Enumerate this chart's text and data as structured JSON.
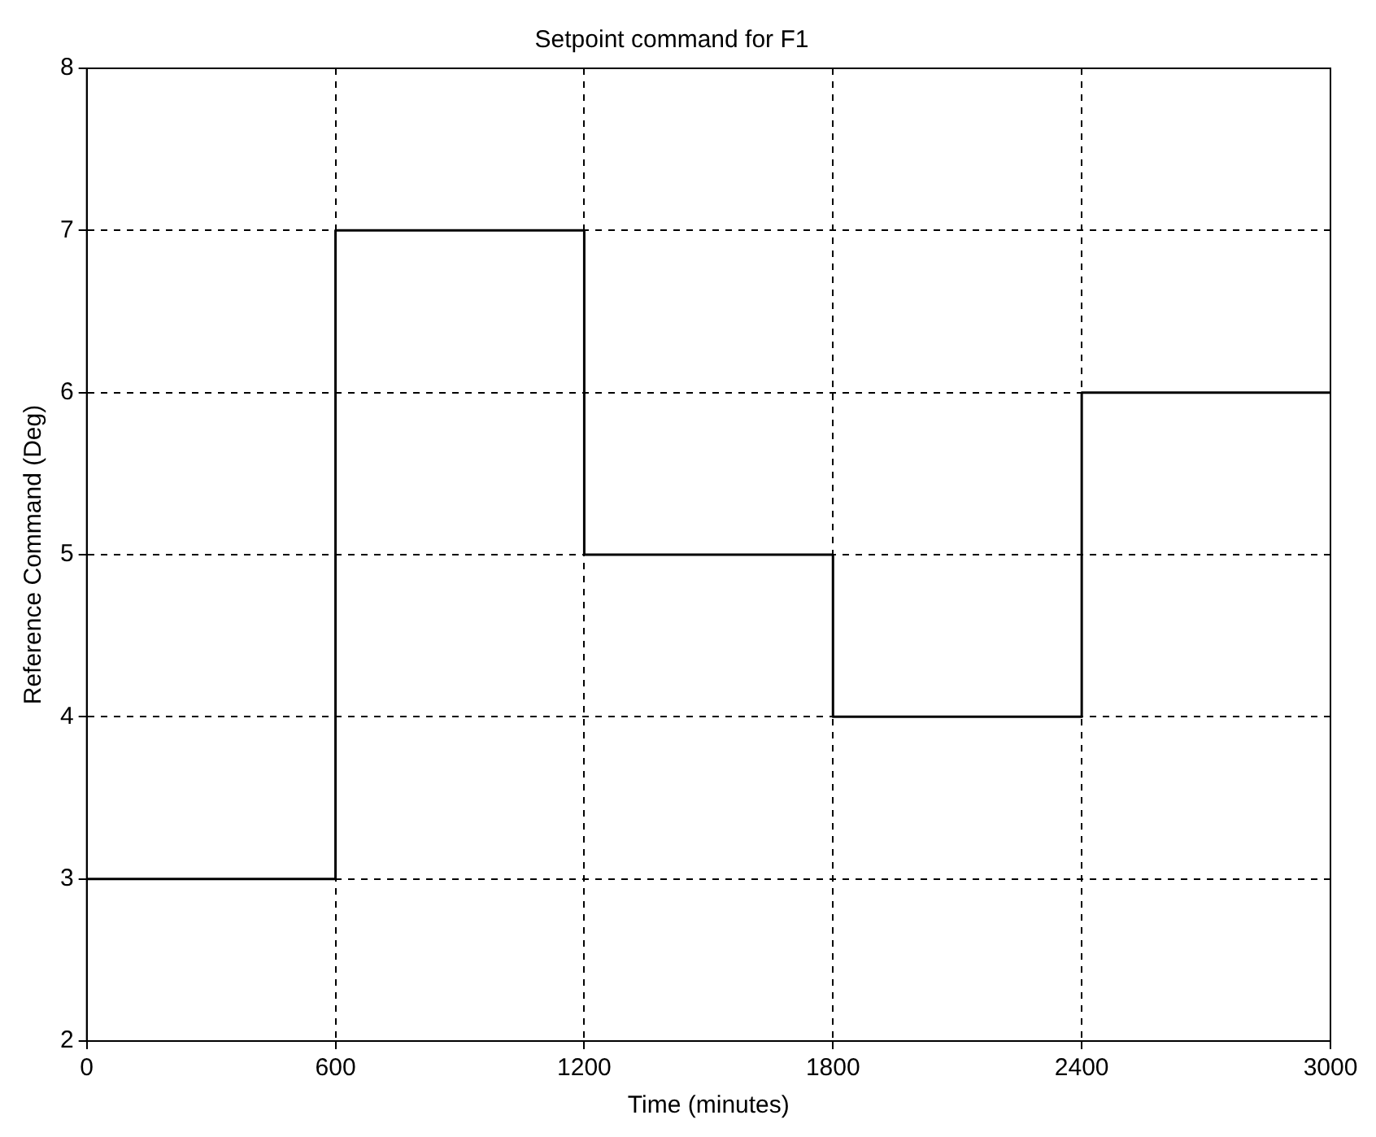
{
  "chart_data": {
    "type": "step",
    "title": "Setpoint command for F1",
    "xlabel": "Time (minutes)",
    "ylabel": "Reference Command (Deg)",
    "x": [
      0,
      600,
      1200,
      1800,
      2400,
      3000
    ],
    "series": [
      {
        "color": "#000000",
        "values": [
          3,
          7,
          5,
          4,
          6,
          6
        ]
      }
    ],
    "xlim": [
      0,
      3000
    ],
    "xticks": [
      0,
      600,
      1200,
      1800,
      2400,
      3000
    ],
    "ylim": [
      2,
      8
    ],
    "yticks": [
      2,
      3,
      4,
      5,
      6,
      7,
      8
    ],
    "grid": true,
    "legend": false,
    "marker": "none",
    "line_style": "solid"
  }
}
